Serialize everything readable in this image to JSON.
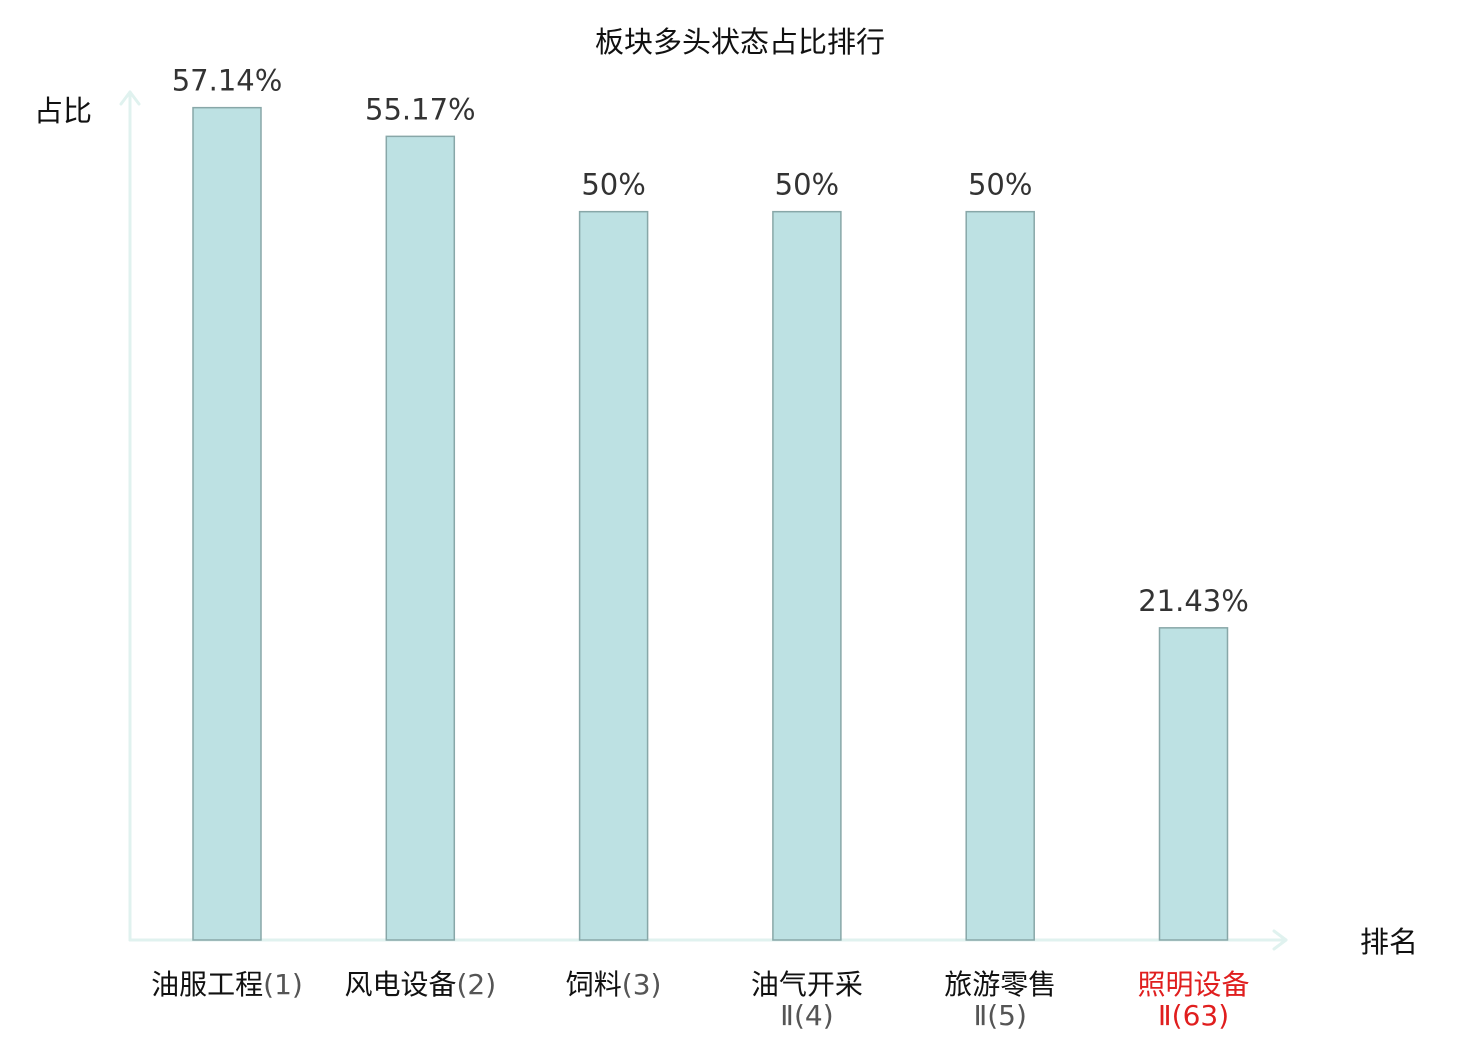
{
  "colors": {
    "bar_fill": "#bde1e3",
    "bar_stroke": "#88a7a8",
    "axis": "#e0f2ef",
    "text": "#111111",
    "value_text": "#333333",
    "sub_text": "#555555",
    "highlight": "#e01e1e"
  },
  "chart_data": {
    "type": "bar",
    "title": "板块多头状态占比排行",
    "ylabel": "占比",
    "xlabel": "排名",
    "ylim": [
      0,
      60
    ],
    "grid": false,
    "legend": "none",
    "categories": [
      {
        "name": "油服工程",
        "rank": "(1)",
        "line2": "",
        "value": 57.14,
        "label": "57.14%",
        "highlight": false
      },
      {
        "name": "风电设备",
        "rank": "(2)",
        "line2": "",
        "value": 55.17,
        "label": "55.17%",
        "highlight": false
      },
      {
        "name": "饲料",
        "rank": "(3)",
        "line2": "",
        "value": 50,
        "label": "50%",
        "highlight": false
      },
      {
        "name": "油气开采",
        "rank": "",
        "line2": "Ⅱ(4)",
        "value": 50,
        "label": "50%",
        "highlight": false
      },
      {
        "name": "旅游零售",
        "rank": "",
        "line2": "Ⅱ(5)",
        "value": 50,
        "label": "50%",
        "highlight": false
      },
      {
        "name": "照明设备",
        "rank": "",
        "line2": "Ⅱ(63)",
        "value": 21.43,
        "label": "21.43%",
        "highlight": true
      }
    ]
  }
}
